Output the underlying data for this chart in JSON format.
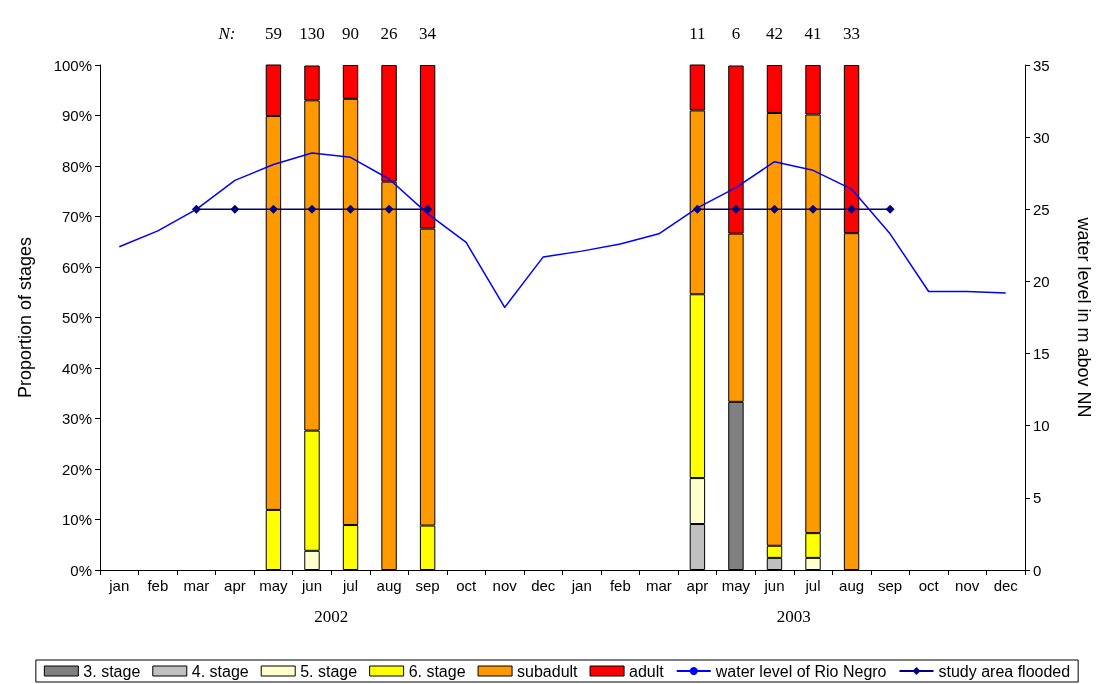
{
  "chart_data": {
    "type": "bar",
    "stacked": true,
    "ylabel": "Proportion of stages",
    "y2label": "water level in m abov NN",
    "categories": [
      "jan",
      "feb",
      "mar",
      "apr",
      "may",
      "jun",
      "jul",
      "aug",
      "sep",
      "oct",
      "nov",
      "dec",
      "jan",
      "feb",
      "mar",
      "apr",
      "may",
      "jun",
      "jul",
      "aug",
      "sep",
      "oct",
      "nov",
      "dec"
    ],
    "series": [
      {
        "name": "3. stage",
        "color": "#808080",
        "values": [
          null,
          null,
          null,
          null,
          null,
          null,
          null,
          null,
          null,
          null,
          null,
          null,
          null,
          null,
          null,
          null,
          33.3,
          null,
          null,
          null,
          null,
          null,
          null,
          null
        ]
      },
      {
        "name": "4. stage",
        "color": "#c0c0c0",
        "values": [
          null,
          null,
          null,
          null,
          null,
          null,
          null,
          null,
          null,
          null,
          null,
          null,
          null,
          null,
          null,
          9.1,
          null,
          2.4,
          null,
          null,
          null,
          null,
          null,
          null
        ]
      },
      {
        "name": "5. stage",
        "color": "#ffffcc",
        "values": [
          null,
          null,
          null,
          null,
          null,
          3.8,
          null,
          null,
          null,
          null,
          null,
          null,
          null,
          null,
          null,
          9.1,
          null,
          null,
          2.4,
          null,
          null,
          null,
          null,
          null
        ]
      },
      {
        "name": "6. stage",
        "color": "#ffff00",
        "values": [
          null,
          null,
          null,
          null,
          11.9,
          23.8,
          8.9,
          null,
          8.8,
          null,
          null,
          null,
          null,
          null,
          null,
          36.4,
          null,
          2.4,
          4.9,
          null,
          null,
          null,
          null,
          null
        ]
      },
      {
        "name": "subadult",
        "color": "#ff9900",
        "values": [
          null,
          null,
          null,
          null,
          78.0,
          65.4,
          84.4,
          76.9,
          58.8,
          null,
          null,
          null,
          null,
          null,
          null,
          36.4,
          33.3,
          85.7,
          82.9,
          66.7,
          null,
          null,
          null,
          null
        ]
      },
      {
        "name": "adult",
        "color": "#ff0000",
        "values": [
          null,
          null,
          null,
          null,
          10.2,
          6.9,
          6.7,
          23.1,
          32.4,
          null,
          null,
          null,
          null,
          null,
          null,
          9.1,
          33.3,
          9.5,
          9.8,
          33.3,
          null,
          null,
          null,
          null
        ]
      },
      {
        "name": "water level of Rio Negro",
        "type": "line",
        "axis": "y2",
        "color": "#0000ff",
        "marker": "none",
        "values": [
          22.4,
          23.5,
          25.0,
          27.0,
          28.1,
          28.9,
          28.6,
          27.1,
          24.7,
          22.7,
          18.2,
          21.7,
          22.1,
          22.6,
          23.3,
          25.1,
          26.5,
          28.3,
          27.7,
          26.4,
          23.3,
          19.3,
          19.3,
          19.2
        ]
      },
      {
        "name": "study area flooded",
        "type": "line",
        "axis": "y2",
        "color": "#000080",
        "marker": "diamond",
        "values": [
          null,
          null,
          25,
          25,
          25,
          25,
          25,
          25,
          25,
          null,
          null,
          null,
          null,
          null,
          null,
          25,
          25,
          25,
          25,
          25,
          25,
          null,
          null,
          null
        ]
      }
    ],
    "annotations": [
      "N:",
      "59",
      "130",
      "90",
      "26",
      "34",
      "11",
      "6",
      "42",
      "41",
      "33",
      "2002",
      "2003"
    ],
    "ylim": [
      0,
      100
    ],
    "yticks": [
      {
        "value": 0,
        "label": "0%"
      },
      {
        "value": 10,
        "label": "10%"
      },
      {
        "value": 20,
        "label": "20%"
      },
      {
        "value": 30,
        "label": "30%"
      },
      {
        "value": 40,
        "label": "40%"
      },
      {
        "value": 50,
        "label": "50%"
      },
      {
        "value": 60,
        "label": "60%"
      },
      {
        "value": 70,
        "label": "70%"
      },
      {
        "value": 80,
        "label": "80%"
      },
      {
        "value": 90,
        "label": "90%"
      },
      {
        "value": 100,
        "label": "100%"
      }
    ],
    "y2lim": [
      0,
      35
    ],
    "y2ticks": [
      0,
      5,
      10,
      15,
      20,
      25,
      30,
      35
    ],
    "grid": false,
    "legend": "bottom"
  }
}
